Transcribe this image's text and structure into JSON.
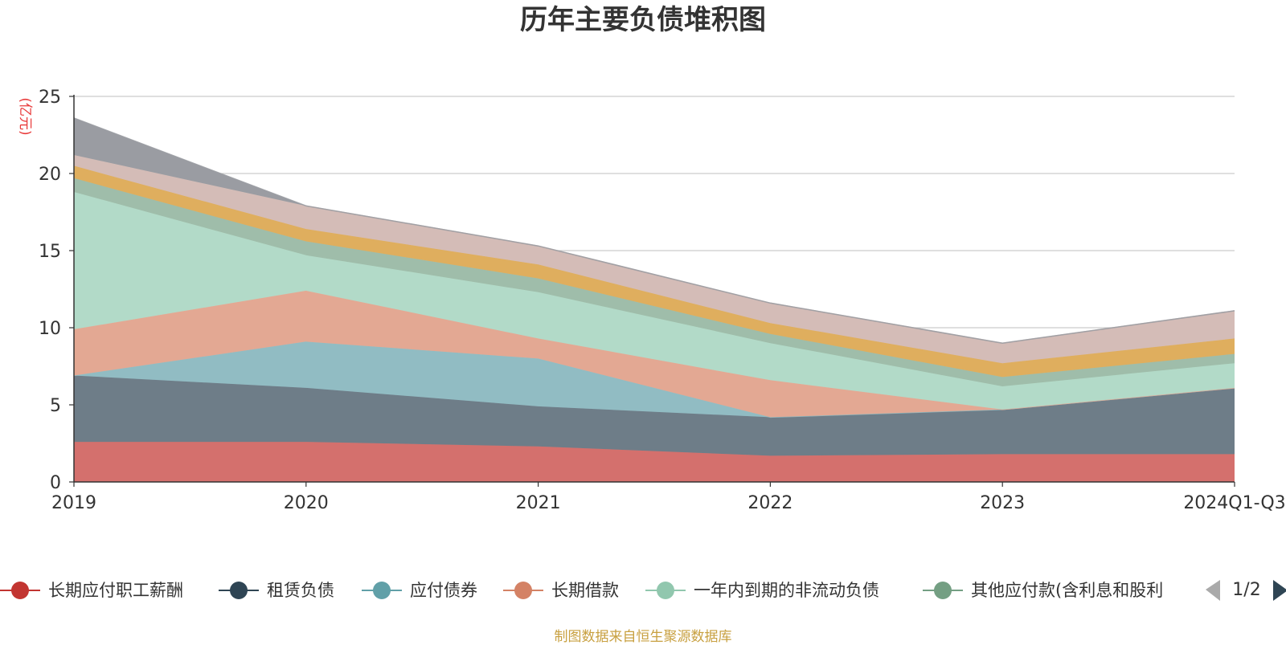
{
  "chart_data": {
    "type": "area",
    "stacked": true,
    "title": "历年主要负债堆积图",
    "unit_label": "(亿元)",
    "categories": [
      "2019",
      "2020",
      "2021",
      "2022",
      "2023",
      "2024Q1-Q3"
    ],
    "ylim": [
      0,
      25
    ],
    "yticks": [
      0,
      5,
      10,
      15,
      20,
      25
    ],
    "grid": true,
    "legend_position": "bottom",
    "series": [
      {
        "name": "长期应付职工薪酬",
        "color": "#d4706d",
        "legend_color": "#c23531",
        "values": [
          2.6,
          2.6,
          2.3,
          1.7,
          1.8,
          1.8
        ]
      },
      {
        "name": "租赁负债",
        "color": "#6e7d88",
        "legend_color": "#2f4554",
        "values": [
          4.3,
          3.5,
          2.6,
          2.5,
          2.9,
          4.3
        ]
      },
      {
        "name": "应付债券",
        "color": "#91bcc3",
        "legend_color": "#61a0a8",
        "values": [
          0.0,
          3.0,
          3.1,
          0.0,
          0.0,
          0.0
        ]
      },
      {
        "name": "长期借款",
        "color": "#e3a893",
        "legend_color": "#d48265",
        "values": [
          3.0,
          3.3,
          1.3,
          2.4,
          0.0,
          0.0
        ]
      },
      {
        "name": "一年内到期的非流动负债",
        "color": "#b2dac8",
        "legend_color": "#91c7ae",
        "values": [
          8.9,
          2.3,
          3.0,
          2.4,
          1.5,
          1.6
        ]
      },
      {
        "name": "其他应付款(含利息和股利",
        "color": "#9fbdaa",
        "legend_color": "#749f83",
        "values": [
          0.9,
          0.9,
          0.9,
          0.6,
          0.6,
          0.6
        ]
      },
      {
        "name": "",
        "color": "#dfae5e",
        "values": [
          0.8,
          0.8,
          0.9,
          0.7,
          0.9,
          1.0
        ]
      },
      {
        "name": "",
        "color": "#d4bcb7",
        "values": [
          0.7,
          1.5,
          1.2,
          1.3,
          1.3,
          1.8
        ]
      },
      {
        "name": "",
        "color": "#9a9ca2",
        "values": [
          2.4,
          0.0,
          0.0,
          0.0,
          0.0,
          0.0
        ]
      }
    ]
  },
  "legend": {
    "page_indicator": "1/2",
    "items": [
      "长期应付职工薪酬",
      "租赁负债",
      "应付债券",
      "长期借款",
      "一年内到期的非流动负债",
      "其他应付款(含利息和股利"
    ]
  },
  "source_note": "制图数据来自恒生聚源数据库"
}
